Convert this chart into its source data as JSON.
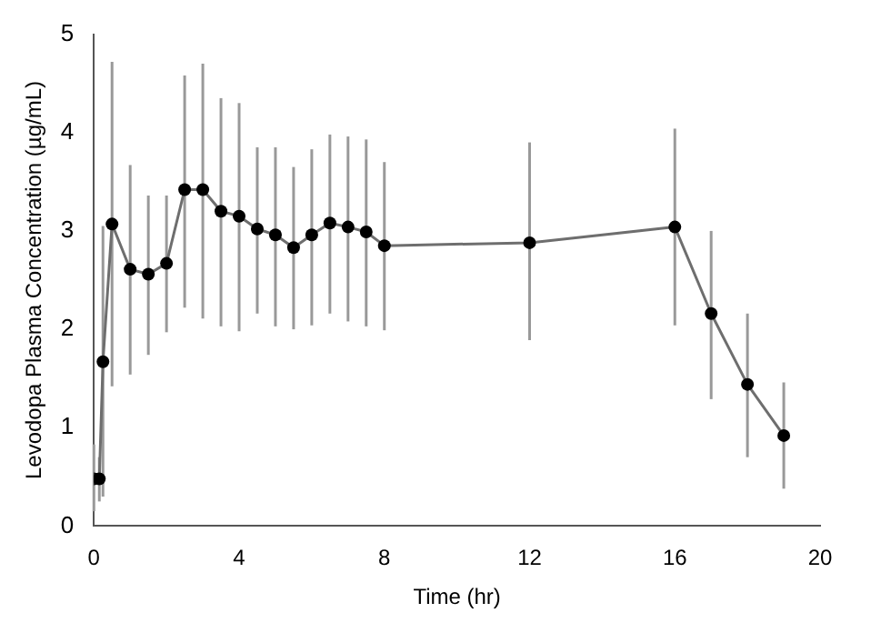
{
  "chart_data": {
    "type": "line",
    "xlabel": "Time (hr)",
    "ylabel": "Levodopa Plasma Concentration (µg/mL)",
    "x": [
      0,
      0.15,
      0.25,
      0.5,
      1,
      1.5,
      2,
      2.5,
      3,
      3.5,
      4,
      4.5,
      5,
      5.5,
      6,
      6.5,
      7,
      7.5,
      8,
      12,
      16,
      17,
      18,
      19
    ],
    "series": [
      {
        "color": "#6e6e6e",
        "values": [
          0.48,
          0.48,
          1.67,
          3.07,
          2.61,
          2.56,
          2.67,
          3.42,
          3.42,
          3.2,
          3.15,
          3.02,
          2.96,
          2.83,
          2.96,
          3.08,
          3.04,
          2.99,
          2.85,
          2.88,
          3.04,
          2.16,
          1.44,
          0.92
        ],
        "errors": [
          [
            0.15,
            0.83
          ],
          [
            0.25,
            0.7
          ],
          [
            0.3,
            3.05
          ],
          [
            1.42,
            4.72
          ],
          [
            1.54,
            3.67
          ],
          [
            1.74,
            3.36
          ],
          [
            1.97,
            3.36
          ],
          [
            2.22,
            4.58
          ],
          [
            2.11,
            4.7
          ],
          [
            2.03,
            4.35
          ],
          [
            1.98,
            4.3
          ],
          [
            2.16,
            3.85
          ],
          [
            2.03,
            3.85
          ],
          [
            2.0,
            3.65
          ],
          [
            2.04,
            3.83
          ],
          [
            2.16,
            3.98
          ],
          [
            2.08,
            3.96
          ],
          [
            2.03,
            3.93
          ],
          [
            1.99,
            3.7
          ],
          [
            1.89,
            3.9
          ],
          [
            2.04,
            4.04
          ],
          [
            1.29,
            3.0
          ],
          [
            0.7,
            2.16
          ],
          [
            0.38,
            1.46
          ]
        ]
      }
    ],
    "xlim": [
      0,
      20
    ],
    "xticks": [
      0,
      4,
      8,
      12,
      16,
      20
    ],
    "ylim": [
      0,
      5
    ],
    "yticks": [
      0,
      1,
      2,
      3,
      4,
      5
    ],
    "grid": false,
    "legend": false,
    "marker": "circle",
    "line_style": "solid"
  }
}
